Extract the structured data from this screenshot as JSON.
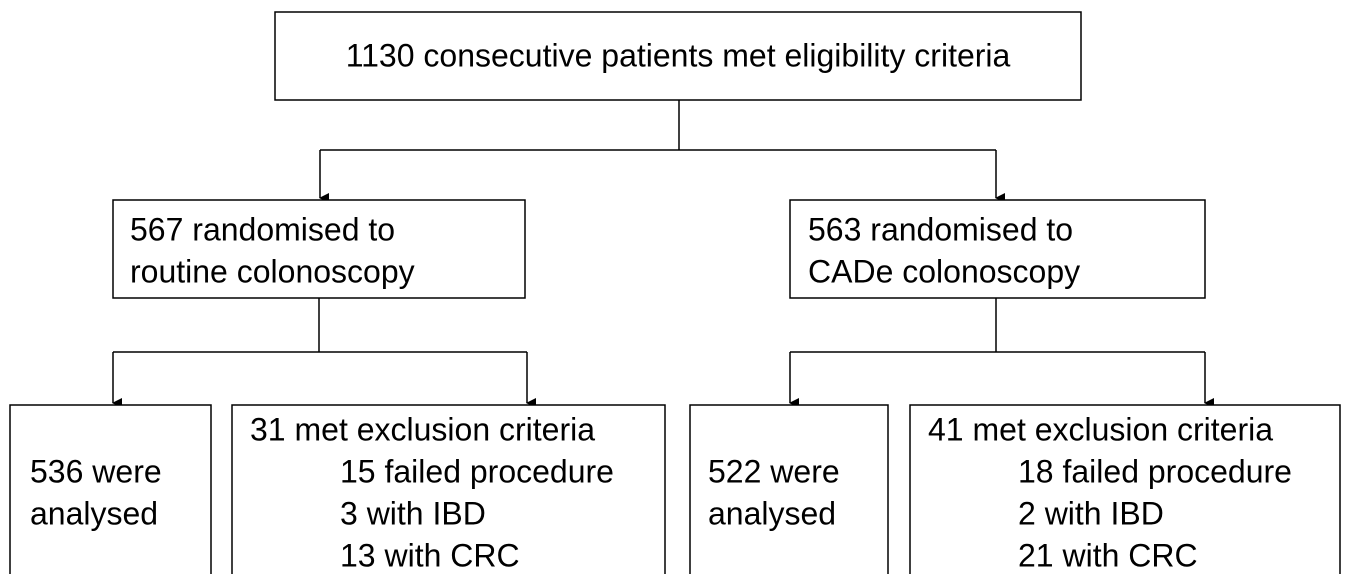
{
  "nodes": [
    {
      "lines": [
        "1130 consecutive patients met eligibility criteria"
      ]
    },
    {
      "lines": [
        "567 randomised to",
        "routine colonoscopy"
      ]
    },
    {
      "lines": [
        "563 randomised to",
        "CADe colonoscopy"
      ]
    },
    {
      "lines": [
        "536 were",
        "analysed"
      ]
    },
    {
      "lines": [
        "31 met exclusion criteria",
        "15 failed procedure",
        "3 with IBD",
        "13 with CRC"
      ]
    },
    {
      "lines": [
        "522 were",
        "analysed"
      ]
    },
    {
      "lines": [
        "41 met exclusion criteria",
        "18 failed procedure",
        "2 with IBD",
        "21 with CRC"
      ]
    }
  ]
}
